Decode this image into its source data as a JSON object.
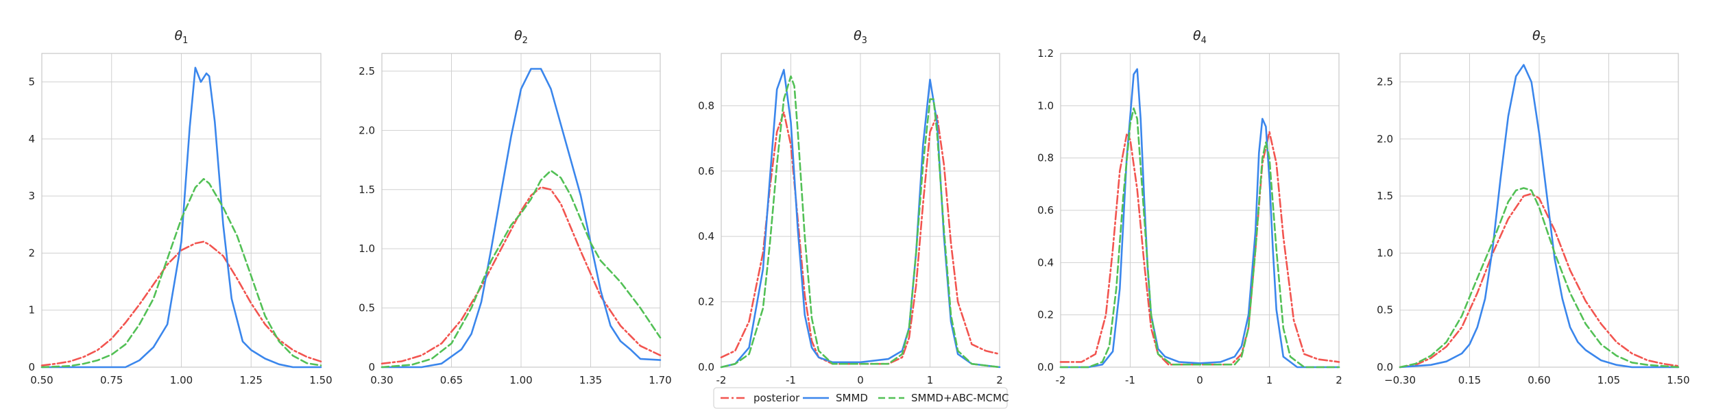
{
  "colors": {
    "posterior": "#f2544f",
    "SMMD": "#3a86ec",
    "SMMD+ABC-MCMC": "#52c055",
    "grid": "#d0d0d0",
    "axis": "#c8c8c8"
  },
  "legend": {
    "entries": [
      {
        "label": "posterior",
        "style": "dashdot"
      },
      {
        "label": "SMMD",
        "style": "solid"
      },
      {
        "label": "SMMD+ABC-MCMC",
        "style": "dashed"
      }
    ]
  },
  "chart_data": [
    {
      "type": "line",
      "title_base": "θ",
      "title_sub": "1",
      "xlim": [
        0.5,
        1.5
      ],
      "ylim": [
        0,
        5.5
      ],
      "xticks": [
        "0.50",
        "0.75",
        "1.00",
        "1.25",
        "1.50"
      ],
      "yticks": [
        "0",
        "1",
        "2",
        "3",
        "4",
        "5"
      ],
      "grid": true,
      "series": [
        {
          "name": "posterior",
          "style": "dashdot",
          "x": [
            0.5,
            0.55,
            0.6,
            0.65,
            0.7,
            0.75,
            0.8,
            0.85,
            0.9,
            0.95,
            1.0,
            1.05,
            1.08,
            1.1,
            1.15,
            1.2,
            1.25,
            1.3,
            1.35,
            1.4,
            1.45,
            1.5
          ],
          "y": [
            0.03,
            0.06,
            0.1,
            0.18,
            0.3,
            0.5,
            0.78,
            1.1,
            1.45,
            1.8,
            2.05,
            2.17,
            2.2,
            2.15,
            1.95,
            1.55,
            1.12,
            0.75,
            0.48,
            0.3,
            0.18,
            0.1
          ]
        },
        {
          "name": "SMMD",
          "style": "solid",
          "x": [
            0.5,
            0.8,
            0.85,
            0.9,
            0.95,
            1.0,
            1.03,
            1.05,
            1.07,
            1.09,
            1.1,
            1.12,
            1.15,
            1.18,
            1.22,
            1.25,
            1.3,
            1.35,
            1.4,
            1.5
          ],
          "y": [
            0,
            0,
            0.12,
            0.35,
            0.75,
            2.2,
            4.2,
            5.25,
            5.0,
            5.15,
            5.1,
            4.3,
            2.5,
            1.2,
            0.45,
            0.3,
            0.15,
            0.05,
            0,
            0
          ]
        },
        {
          "name": "SMMD+ABC-MCMC",
          "style": "dashed",
          "x": [
            0.5,
            0.6,
            0.65,
            0.7,
            0.75,
            0.8,
            0.85,
            0.9,
            0.95,
            1.0,
            1.05,
            1.08,
            1.1,
            1.15,
            1.2,
            1.25,
            1.3,
            1.35,
            1.4,
            1.45,
            1.5
          ],
          "y": [
            0,
            0.02,
            0.06,
            0.12,
            0.22,
            0.4,
            0.75,
            1.2,
            1.9,
            2.6,
            3.15,
            3.3,
            3.22,
            2.8,
            2.3,
            1.6,
            0.9,
            0.45,
            0.2,
            0.07,
            0.03
          ]
        }
      ]
    },
    {
      "type": "line",
      "title_base": "θ",
      "title_sub": "2",
      "xlim": [
        0.3,
        1.7
      ],
      "ylim": [
        0,
        2.65
      ],
      "xticks": [
        "0.30",
        "0.65",
        "1.00",
        "1.35",
        "1.70"
      ],
      "yticks": [
        "0",
        "0.5",
        "1.0",
        "1.5",
        "2.0",
        "2.5"
      ],
      "grid": true,
      "series": [
        {
          "name": "posterior",
          "style": "dashdot",
          "x": [
            0.3,
            0.4,
            0.5,
            0.6,
            0.7,
            0.8,
            0.9,
            1.0,
            1.05,
            1.1,
            1.15,
            1.2,
            1.3,
            1.4,
            1.5,
            1.6,
            1.7
          ],
          "y": [
            0.03,
            0.05,
            0.1,
            0.2,
            0.4,
            0.68,
            1.0,
            1.32,
            1.45,
            1.52,
            1.5,
            1.38,
            0.98,
            0.6,
            0.35,
            0.18,
            0.1
          ]
        },
        {
          "name": "SMMD",
          "style": "solid",
          "x": [
            0.3,
            0.5,
            0.6,
            0.7,
            0.75,
            0.8,
            0.85,
            0.9,
            0.95,
            1.0,
            1.05,
            1.1,
            1.15,
            1.2,
            1.25,
            1.3,
            1.35,
            1.4,
            1.45,
            1.5,
            1.55,
            1.6,
            1.7
          ],
          "y": [
            0,
            0,
            0.03,
            0.15,
            0.28,
            0.55,
            1.0,
            1.48,
            1.95,
            2.35,
            2.52,
            2.52,
            2.35,
            2.05,
            1.75,
            1.45,
            1.05,
            0.65,
            0.35,
            0.22,
            0.15,
            0.07,
            0.06
          ]
        },
        {
          "name": "SMMD+ABC-MCMC",
          "style": "dashed",
          "x": [
            0.3,
            0.45,
            0.55,
            0.65,
            0.75,
            0.85,
            0.95,
            1.0,
            1.05,
            1.1,
            1.15,
            1.2,
            1.25,
            1.3,
            1.35,
            1.4,
            1.5,
            1.6,
            1.7
          ],
          "y": [
            0,
            0.02,
            0.07,
            0.2,
            0.5,
            0.9,
            1.2,
            1.3,
            1.42,
            1.58,
            1.66,
            1.6,
            1.45,
            1.25,
            1.05,
            0.9,
            0.72,
            0.5,
            0.25
          ]
        }
      ]
    },
    {
      "type": "line",
      "title_base": "θ",
      "title_sub": "3",
      "xlim": [
        -2,
        2
      ],
      "ylim": [
        0,
        0.96
      ],
      "xticks": [
        "-2",
        "-1",
        "0",
        "1",
        "2"
      ],
      "yticks": [
        "0.0",
        "0.2",
        "0.4",
        "0.6",
        "0.8"
      ],
      "grid": true,
      "series": [
        {
          "name": "posterior",
          "style": "dashdot",
          "x": [
            -2,
            -1.8,
            -1.6,
            -1.4,
            -1.3,
            -1.2,
            -1.1,
            -1.0,
            -0.9,
            -0.8,
            -0.7,
            -0.6,
            -0.4,
            0,
            0.4,
            0.6,
            0.7,
            0.8,
            0.9,
            1.0,
            1.1,
            1.2,
            1.3,
            1.4,
            1.6,
            1.8,
            2
          ],
          "y": [
            0.03,
            0.05,
            0.14,
            0.35,
            0.55,
            0.72,
            0.78,
            0.68,
            0.45,
            0.22,
            0.08,
            0.03,
            0.01,
            0.01,
            0.01,
            0.03,
            0.09,
            0.25,
            0.5,
            0.72,
            0.77,
            0.62,
            0.38,
            0.2,
            0.07,
            0.05,
            0.04
          ]
        },
        {
          "name": "SMMD",
          "style": "solid",
          "x": [
            -2,
            -1.8,
            -1.6,
            -1.4,
            -1.3,
            -1.2,
            -1.1,
            -1.0,
            -0.9,
            -0.8,
            -0.7,
            -0.6,
            -0.4,
            0,
            0.4,
            0.6,
            0.7,
            0.8,
            0.9,
            1.0,
            1.1,
            1.2,
            1.3,
            1.4,
            1.6,
            2
          ],
          "y": [
            0,
            0.01,
            0.06,
            0.3,
            0.58,
            0.85,
            0.91,
            0.75,
            0.42,
            0.16,
            0.06,
            0.03,
            0.015,
            0.015,
            0.025,
            0.05,
            0.12,
            0.35,
            0.68,
            0.88,
            0.75,
            0.4,
            0.14,
            0.04,
            0.01,
            0
          ]
        },
        {
          "name": "SMMD+ABC-MCMC",
          "style": "dashed",
          "x": [
            -2,
            -1.8,
            -1.6,
            -1.4,
            -1.3,
            -1.2,
            -1.1,
            -1.0,
            -0.95,
            -0.9,
            -0.8,
            -0.7,
            -0.6,
            -0.4,
            0,
            0.4,
            0.6,
            0.7,
            0.8,
            0.9,
            1.0,
            1.05,
            1.1,
            1.2,
            1.3,
            1.4,
            1.6,
            2
          ],
          "y": [
            0,
            0.01,
            0.04,
            0.18,
            0.38,
            0.62,
            0.82,
            0.89,
            0.86,
            0.72,
            0.4,
            0.15,
            0.05,
            0.01,
            0.01,
            0.01,
            0.04,
            0.12,
            0.35,
            0.62,
            0.82,
            0.82,
            0.72,
            0.42,
            0.16,
            0.05,
            0.01,
            0
          ]
        }
      ]
    },
    {
      "type": "line",
      "title_base": "θ",
      "title_sub": "4",
      "xlim": [
        -2,
        2
      ],
      "ylim": [
        0,
        1.2
      ],
      "xticks": [
        "-2",
        "-1",
        "0",
        "1",
        "2"
      ],
      "yticks": [
        "0.0",
        "0.2",
        "0.4",
        "0.6",
        "0.8",
        "1.0",
        "1.2"
      ],
      "grid": true,
      "series": [
        {
          "name": "posterior",
          "style": "dashdot",
          "x": [
            -2,
            -1.7,
            -1.5,
            -1.35,
            -1.25,
            -1.15,
            -1.05,
            -1.0,
            -0.9,
            -0.8,
            -0.7,
            -0.6,
            -0.45,
            0,
            0.45,
            0.6,
            0.7,
            0.8,
            0.9,
            1.0,
            1.1,
            1.2,
            1.35,
            1.5,
            1.7,
            2
          ],
          "y": [
            0.02,
            0.02,
            0.05,
            0.2,
            0.45,
            0.75,
            0.89,
            0.87,
            0.68,
            0.4,
            0.15,
            0.05,
            0.01,
            0.01,
            0.01,
            0.05,
            0.15,
            0.45,
            0.78,
            0.9,
            0.78,
            0.5,
            0.18,
            0.05,
            0.03,
            0.02
          ]
        },
        {
          "name": "SMMD",
          "style": "solid",
          "x": [
            -2,
            -1.6,
            -1.4,
            -1.25,
            -1.15,
            -1.05,
            -0.95,
            -0.9,
            -0.85,
            -0.8,
            -0.75,
            -0.7,
            -0.6,
            -0.5,
            -0.3,
            0,
            0.3,
            0.5,
            0.6,
            0.7,
            0.8,
            0.85,
            0.9,
            0.95,
            1.0,
            1.05,
            1.1,
            1.2,
            1.4,
            2
          ],
          "y": [
            0,
            0,
            0.01,
            0.06,
            0.3,
            0.8,
            1.12,
            1.14,
            0.95,
            0.65,
            0.38,
            0.2,
            0.07,
            0.04,
            0.02,
            0.015,
            0.02,
            0.04,
            0.08,
            0.2,
            0.52,
            0.82,
            0.95,
            0.92,
            0.72,
            0.45,
            0.22,
            0.04,
            0,
            0
          ]
        },
        {
          "name": "SMMD+ABC-MCMC",
          "style": "dashed",
          "x": [
            -2,
            -1.6,
            -1.4,
            -1.3,
            -1.2,
            -1.1,
            -1.0,
            -0.95,
            -0.9,
            -0.8,
            -0.7,
            -0.6,
            -0.4,
            0,
            0.5,
            0.6,
            0.7,
            0.8,
            0.9,
            0.95,
            1.0,
            1.1,
            1.2,
            1.3,
            1.5,
            2
          ],
          "y": [
            0,
            0,
            0.02,
            0.08,
            0.3,
            0.65,
            0.93,
            0.99,
            0.95,
            0.58,
            0.2,
            0.05,
            0.01,
            0.01,
            0.01,
            0.04,
            0.15,
            0.45,
            0.8,
            0.86,
            0.8,
            0.45,
            0.15,
            0.04,
            0,
            0
          ]
        }
      ]
    },
    {
      "type": "line",
      "title_base": "θ",
      "title_sub": "5",
      "xlim": [
        -0.3,
        1.5
      ],
      "ylim": [
        0,
        2.75
      ],
      "xticks": [
        "−0.30",
        "0.15",
        "0.60",
        "1.05",
        "1.50"
      ],
      "yticks": [
        "0.0",
        "0.5",
        "1.0",
        "1.5",
        "2.0",
        "2.5"
      ],
      "grid": true,
      "series": [
        {
          "name": "posterior",
          "style": "dashdot",
          "x": [
            -0.3,
            -0.2,
            -0.1,
            0,
            0.1,
            0.2,
            0.3,
            0.4,
            0.5,
            0.55,
            0.6,
            0.7,
            0.8,
            0.9,
            1.0,
            1.1,
            1.2,
            1.3,
            1.4,
            1.5
          ],
          "y": [
            0,
            0.02,
            0.08,
            0.18,
            0.35,
            0.65,
            1.0,
            1.3,
            1.5,
            1.52,
            1.48,
            1.2,
            0.85,
            0.58,
            0.38,
            0.22,
            0.12,
            0.06,
            0.03,
            0.01
          ]
        },
        {
          "name": "SMMD",
          "style": "solid",
          "x": [
            -0.3,
            -0.1,
            0,
            0.1,
            0.15,
            0.2,
            0.25,
            0.3,
            0.35,
            0.4,
            0.45,
            0.5,
            0.55,
            0.6,
            0.65,
            0.7,
            0.75,
            0.8,
            0.85,
            0.9,
            1.0,
            1.1,
            1.2,
            1.5
          ],
          "y": [
            0,
            0.02,
            0.05,
            0.12,
            0.2,
            0.35,
            0.6,
            1.05,
            1.65,
            2.2,
            2.55,
            2.65,
            2.5,
            2.05,
            1.5,
            0.95,
            0.6,
            0.35,
            0.22,
            0.15,
            0.06,
            0.02,
            0,
            0
          ]
        },
        {
          "name": "SMMD+ABC-MCMC",
          "style": "dashed",
          "x": [
            -0.3,
            -0.2,
            -0.1,
            0,
            0.1,
            0.2,
            0.3,
            0.4,
            0.45,
            0.5,
            0.55,
            0.6,
            0.7,
            0.8,
            0.9,
            1.0,
            1.1,
            1.2,
            1.3,
            1.5
          ],
          "y": [
            0,
            0.03,
            0.1,
            0.22,
            0.45,
            0.78,
            1.1,
            1.45,
            1.55,
            1.57,
            1.55,
            1.4,
            1.0,
            0.65,
            0.38,
            0.2,
            0.1,
            0.04,
            0.02,
            0
          ]
        }
      ]
    }
  ]
}
